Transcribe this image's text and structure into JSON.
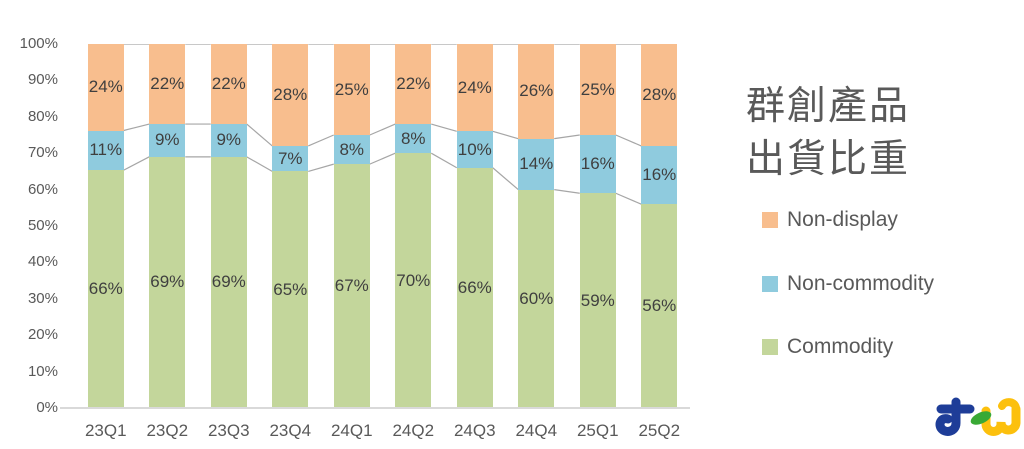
{
  "title": {
    "line1": "群創產品",
    "line2": "出貨比重"
  },
  "legend": [
    {
      "label": "Non-display",
      "color": "#F8BE8E"
    },
    {
      "label": "Non-commodity",
      "color": "#8FCBDE"
    },
    {
      "label": "Commodity",
      "color": "#C3D69B"
    }
  ],
  "logo": {
    "alt": "tej"
  },
  "colors": {
    "axis_text": "#595959",
    "data_label": "#3f3f3f",
    "connector": "#a6a6a6",
    "baseline": "#d9d9d9"
  },
  "chart_data": {
    "type": "bar",
    "stacked": true,
    "percent": true,
    "title": "群創產品出貨比重",
    "categories": [
      "23Q1",
      "23Q2",
      "23Q3",
      "23Q4",
      "24Q1",
      "24Q2",
      "24Q3",
      "24Q4",
      "25Q1",
      "25Q2"
    ],
    "series": [
      {
        "name": "Commodity",
        "color": "#C3D69B",
        "values": [
          66,
          69,
          69,
          65,
          67,
          70,
          66,
          60,
          59,
          56
        ]
      },
      {
        "name": "Non-commodity",
        "color": "#8FCBDE",
        "values": [
          11,
          9,
          9,
          7,
          8,
          8,
          10,
          14,
          16,
          16
        ]
      },
      {
        "name": "Non-display",
        "color": "#F8BE8E",
        "values": [
          24,
          22,
          22,
          28,
          25,
          22,
          24,
          26,
          25,
          28
        ]
      }
    ],
    "y_ticks": [
      "0%",
      "10%",
      "20%",
      "30%",
      "40%",
      "50%",
      "60%",
      "70%",
      "80%",
      "90%",
      "100%"
    ],
    "ylim": [
      0,
      100
    ],
    "grid": false,
    "legend_position": "right",
    "connector_lines": true,
    "xlabel": "",
    "ylabel": ""
  }
}
